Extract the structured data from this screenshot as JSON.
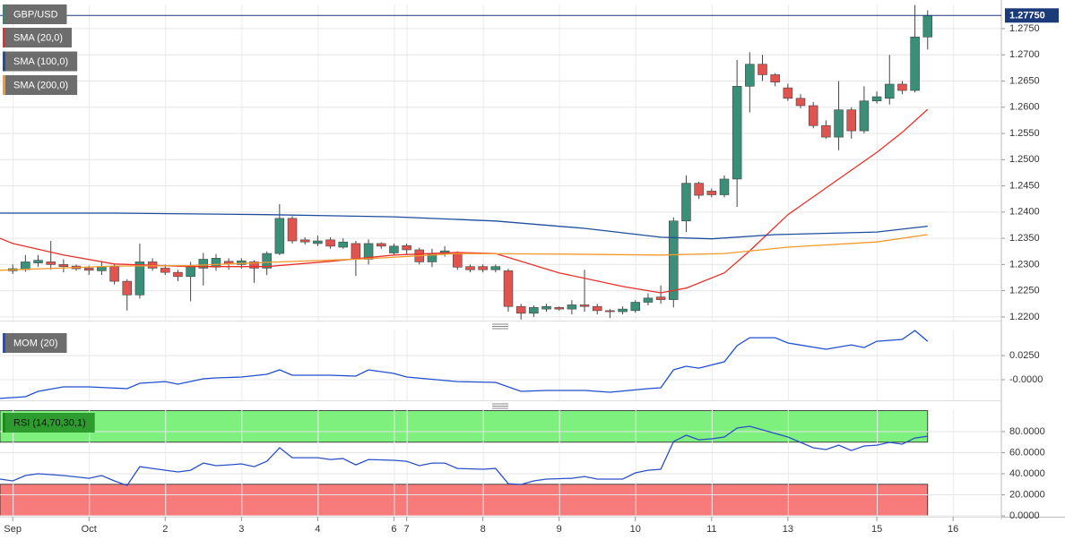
{
  "chart_data": [
    {
      "type": "candlestick",
      "candles": {
        "name": "GBP/USD",
        "color": "#2f8a72",
        "up_color": "#3a8f78",
        "down_color": "#e0534e",
        "ohlc": [
          [
            1.2288,
            1.23,
            1.2282,
            1.2292
          ],
          [
            1.229,
            1.2318,
            1.2286,
            1.2305
          ],
          [
            1.2303,
            1.2318,
            1.2296,
            1.2308
          ],
          [
            1.2305,
            1.2345,
            1.229,
            1.23
          ],
          [
            1.23,
            1.231,
            1.2285,
            1.2296
          ],
          [
            1.2297,
            1.23,
            1.2288,
            1.2292
          ],
          [
            1.2293,
            1.2298,
            1.228,
            1.2289
          ],
          [
            1.2288,
            1.2305,
            1.228,
            1.2296
          ],
          [
            1.2296,
            1.23,
            1.2262,
            1.2268
          ],
          [
            1.2268,
            1.2272,
            1.2212,
            1.2242
          ],
          [
            1.2242,
            1.234,
            1.2235,
            1.2305
          ],
          [
            1.2305,
            1.2312,
            1.2288,
            1.2293
          ],
          [
            1.2293,
            1.23,
            1.228,
            1.2285
          ],
          [
            1.2285,
            1.229,
            1.2268,
            1.2277
          ],
          [
            1.2277,
            1.2305,
            1.223,
            1.2296
          ],
          [
            1.2293,
            1.2322,
            1.226,
            1.231
          ],
          [
            1.2295,
            1.232,
            1.2288,
            1.2312
          ],
          [
            1.2306,
            1.2312,
            1.229,
            1.2301
          ],
          [
            1.23,
            1.2312,
            1.2292,
            1.2307
          ],
          [
            1.2305,
            1.2308,
            1.2265,
            1.2293
          ],
          [
            1.2293,
            1.2325,
            1.228,
            1.2321
          ],
          [
            1.2321,
            1.2415,
            1.2318,
            1.2388
          ],
          [
            1.2388,
            1.2392,
            1.234,
            1.2345
          ],
          [
            1.2347,
            1.2352,
            1.2338,
            1.2343
          ],
          [
            1.234,
            1.2355,
            1.2335,
            1.2345
          ],
          [
            1.2347,
            1.2352,
            1.233,
            1.2335
          ],
          [
            1.2333,
            1.235,
            1.233,
            1.2343
          ],
          [
            1.234,
            1.2345,
            1.2278,
            1.231
          ],
          [
            1.231,
            1.2348,
            1.23,
            1.234
          ],
          [
            1.234,
            1.2342,
            1.233,
            1.2335
          ],
          [
            1.2322,
            1.234,
            1.2318,
            1.2335
          ],
          [
            1.2336,
            1.234,
            1.232,
            1.2328
          ],
          [
            1.2328,
            1.2332,
            1.23,
            1.2305
          ],
          [
            1.2305,
            1.233,
            1.2295,
            1.2321
          ],
          [
            1.2321,
            1.2335,
            1.2315,
            1.2326
          ],
          [
            1.2321,
            1.2325,
            1.229,
            1.2295
          ],
          [
            1.2296,
            1.23,
            1.2285,
            1.229
          ],
          [
            1.2296,
            1.23,
            1.2285,
            1.229
          ],
          [
            1.229,
            1.23,
            1.2285,
            1.2296
          ],
          [
            1.2288,
            1.2292,
            1.221,
            1.222
          ],
          [
            1.222,
            1.2225,
            1.2195,
            1.2207
          ],
          [
            1.2207,
            1.2222,
            1.22,
            1.2218
          ],
          [
            1.2215,
            1.2225,
            1.221,
            1.222
          ],
          [
            1.2218,
            1.222,
            1.2212,
            1.2215
          ],
          [
            1.2215,
            1.2232,
            1.2205,
            1.2223
          ],
          [
            1.2223,
            1.229,
            1.221,
            1.222
          ],
          [
            1.222,
            1.2225,
            1.2205,
            1.2212
          ],
          [
            1.2212,
            1.2215,
            1.2198,
            1.221
          ],
          [
            1.221,
            1.222,
            1.2205,
            1.2215
          ],
          [
            1.2212,
            1.2232,
            1.2208,
            1.2228
          ],
          [
            1.2228,
            1.2245,
            1.2222,
            1.2236
          ],
          [
            1.2238,
            1.226,
            1.2225,
            1.2233
          ],
          [
            1.2233,
            1.239,
            1.2218,
            1.2383
          ],
          [
            1.2383,
            1.247,
            1.2362,
            1.2455
          ],
          [
            1.2455,
            1.2458,
            1.2425,
            1.2432
          ],
          [
            1.244,
            1.2445,
            1.2428,
            1.2433
          ],
          [
            1.2433,
            1.247,
            1.2428,
            1.2463
          ],
          [
            1.2463,
            1.269,
            1.241,
            1.264
          ],
          [
            1.264,
            1.2705,
            1.259,
            1.2682
          ],
          [
            1.2682,
            1.27,
            1.265,
            1.2662
          ],
          [
            1.2662,
            1.2665,
            1.264,
            1.2648
          ],
          [
            1.2637,
            1.2645,
            1.2612,
            1.2617
          ],
          [
            1.2617,
            1.2625,
            1.2598,
            1.2603
          ],
          [
            1.2603,
            1.261,
            1.256,
            1.2565
          ],
          [
            1.2565,
            1.2575,
            1.254,
            1.2543
          ],
          [
            1.2543,
            1.265,
            1.2518,
            1.2595
          ],
          [
            1.2595,
            1.26,
            1.254,
            1.2555
          ],
          [
            1.2555,
            1.264,
            1.255,
            1.2612
          ],
          [
            1.2612,
            1.263,
            1.2607,
            1.262
          ],
          [
            1.2617,
            1.27,
            1.2605,
            1.2644
          ],
          [
            1.2644,
            1.265,
            1.2625,
            1.2632
          ],
          [
            1.2632,
            1.2795,
            1.2628,
            1.2734
          ],
          [
            1.2734,
            1.2785,
            1.271,
            1.2775
          ]
        ]
      },
      "series": [
        {
          "name": "SMA (20,0)",
          "color": "#e8312a",
          "x": [
            -1,
            0,
            4,
            8,
            14,
            20,
            25,
            30,
            35,
            38,
            43,
            48,
            51,
            53,
            56,
            58,
            61,
            65,
            68,
            70,
            72
          ],
          "values": [
            1.235,
            1.234,
            1.2318,
            1.2301,
            1.2296,
            1.2296,
            1.2306,
            1.2318,
            1.2323,
            1.2321,
            1.2284,
            1.2258,
            1.2246,
            1.2255,
            1.2284,
            1.2326,
            1.2395,
            1.2463,
            1.2514,
            1.2552,
            1.2596
          ]
        },
        {
          "name": "SMA (100,0)",
          "color": "#1e4e9c",
          "x": [
            -1,
            8,
            20,
            30,
            38,
            45,
            51,
            55,
            60,
            68,
            72
          ],
          "values": [
            1.2398,
            1.2398,
            1.2395,
            1.2391,
            1.2383,
            1.2369,
            1.2352,
            1.2349,
            1.2357,
            1.2362,
            1.2373
          ]
        },
        {
          "name": "SMA (200,0)",
          "color": "#f29a2e",
          "x": [
            -1,
            8,
            14,
            20,
            28,
            35,
            43,
            51,
            56,
            61,
            68,
            72
          ],
          "values": [
            1.2289,
            1.2297,
            1.2298,
            1.2304,
            1.2311,
            1.2321,
            1.232,
            1.2318,
            1.2321,
            1.2333,
            1.2343,
            1.2357
          ]
        }
      ],
      "last_price": {
        "value": 1.2775,
        "label": "1.27750",
        "color": "#1a3a7a"
      },
      "xlim": [
        -1,
        77.8
      ],
      "xticks": [
        {
          "value": 0,
          "label": "Sep"
        },
        {
          "value": 6,
          "label": "Oct"
        },
        {
          "value": 12,
          "label": "2"
        },
        {
          "value": 18,
          "label": "3"
        },
        {
          "value": 24,
          "label": "4"
        },
        {
          "value": 30,
          "label": "6"
        },
        {
          "value": 31,
          "label": "7"
        },
        {
          "value": 37,
          "label": "8"
        },
        {
          "value": 43,
          "label": "9"
        },
        {
          "value": 49,
          "label": "10"
        },
        {
          "value": 55,
          "label": "11"
        },
        {
          "value": 61,
          "label": "13"
        },
        {
          "value": 68,
          "label": "15"
        },
        {
          "value": 74,
          "label": "16"
        }
      ],
      "ylim": [
        1.2193,
        1.2796
      ],
      "yticks": [
        {
          "value": 1.22,
          "label": "1.2200"
        },
        {
          "value": 1.225,
          "label": "1.2250"
        },
        {
          "value": 1.23,
          "label": "1.2300"
        },
        {
          "value": 1.235,
          "label": "1.2350"
        },
        {
          "value": 1.24,
          "label": "1.2400"
        },
        {
          "value": 1.245,
          "label": "1.2450"
        },
        {
          "value": 1.25,
          "label": "1.2500"
        },
        {
          "value": 1.255,
          "label": "1.2550"
        },
        {
          "value": 1.26,
          "label": "1.2600"
        },
        {
          "value": 1.265,
          "label": "1.2650"
        },
        {
          "value": 1.27,
          "label": "1.2700"
        },
        {
          "value": 1.275,
          "label": "1.2750"
        }
      ],
      "grid": true
    },
    {
      "type": "line",
      "series": [
        {
          "name": "MOM (20)",
          "color": "#1f4fd1",
          "x": [
            -1,
            1,
            2,
            4,
            6,
            9,
            10,
            12,
            13,
            15,
            16,
            18,
            20,
            21,
            22,
            25,
            27,
            28,
            30,
            31,
            35,
            38,
            40,
            42,
            45,
            47,
            50,
            51,
            52,
            53,
            54,
            56,
            57,
            58,
            60,
            61,
            64,
            66,
            67,
            68,
            70,
            71,
            72
          ],
          "values": [
            -0.0194,
            -0.0176,
            -0.012,
            -0.0074,
            -0.0074,
            -0.0093,
            -0.0037,
            -0.0019,
            -0.0046,
            0.0009,
            0.0019,
            0.0028,
            0.0056,
            0.0102,
            0.0046,
            0.0046,
            0.0037,
            0.0102,
            0.0065,
            0.0028,
            -0.0019,
            -0.0028,
            -0.012,
            -0.0111,
            -0.0111,
            -0.013,
            -0.0093,
            -0.0083,
            0.0102,
            0.0139,
            0.012,
            0.0185,
            0.0352,
            0.0435,
            0.0435,
            0.038,
            0.0315,
            0.0361,
            0.0333,
            0.0398,
            0.0417,
            0.0509,
            0.0398
          ]
        }
      ],
      "xlim": [
        -1,
        77.8
      ],
      "ylim": [
        -0.0213,
        0.0519
      ],
      "yticks": [
        {
          "value": 0.025,
          "label": "0.0250"
        },
        {
          "value": 0,
          "label": "-0.0000"
        }
      ],
      "grid": true
    },
    {
      "type": "line",
      "series": [
        {
          "name": "RSI (14,70,30,1)",
          "color": "#2a50c8",
          "x": [
            -1,
            0,
            1,
            2,
            4,
            6,
            7,
            8,
            9,
            10,
            11,
            13,
            14,
            15,
            16,
            17,
            18,
            19,
            20,
            21,
            22,
            24,
            25,
            26,
            27,
            28,
            30,
            31,
            32,
            33,
            34,
            35,
            37,
            38,
            39,
            40,
            41,
            42,
            44,
            45,
            46,
            48,
            49,
            50,
            51,
            52,
            53,
            54,
            55,
            56,
            57,
            58,
            59,
            60,
            61,
            62,
            63,
            64,
            65,
            66,
            67,
            68,
            69,
            70,
            71,
            72
          ],
          "values": [
            34.9,
            33.2,
            38.3,
            40.0,
            38.3,
            35.7,
            38.3,
            33.2,
            28.9,
            46.8,
            45.1,
            41.7,
            43.4,
            50.2,
            47.7,
            48.5,
            49.4,
            46.8,
            51.9,
            64.7,
            55.3,
            55.3,
            53.6,
            54.5,
            48.5,
            53.6,
            52.8,
            51.9,
            47.7,
            50.2,
            50.2,
            45.1,
            44.3,
            45.1,
            30.6,
            29.8,
            33.2,
            34.9,
            35.7,
            37.4,
            34.9,
            34.9,
            40.9,
            43.4,
            44.3,
            70.6,
            76.6,
            72.3,
            73.2,
            74.9,
            83.4,
            85.1,
            81.7,
            78.3,
            74.9,
            69.8,
            64.7,
            63.0,
            67.2,
            62.1,
            66.4,
            67.2,
            69.8,
            68.1,
            74.0,
            75.7
          ]
        }
      ],
      "bands": [
        {
          "from": 70,
          "to": 100,
          "color": "#7ef07e"
        },
        {
          "from": 0,
          "to": 30,
          "color": "#f77b7b"
        }
      ],
      "xlim": [
        -1,
        77.8
      ],
      "ylim": [
        -0.8,
        101.3
      ],
      "yticks": [
        {
          "value": 80,
          "label": "80.0000"
        },
        {
          "value": 60,
          "label": "60.0000"
        },
        {
          "value": 40,
          "label": "40.0000"
        },
        {
          "value": 20,
          "label": "20.0000"
        },
        {
          "value": 0,
          "label": "0.0000"
        }
      ],
      "grid": true
    }
  ]
}
